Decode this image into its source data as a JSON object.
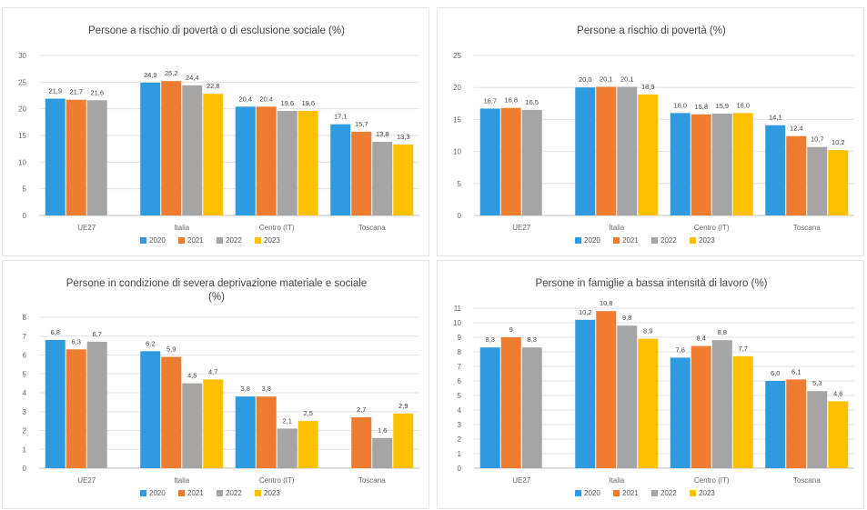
{
  "colors": {
    "2020": "#2e9be0",
    "2021": "#ee7d31",
    "2022": "#a5a5a5",
    "2023": "#ffc000",
    "grid": "#e3e3e3",
    "axis": "#bfbfbf"
  },
  "chart_data": [
    {
      "type": "bar",
      "title": [
        "Persone a rischio di povertà o di esclusione sociale (%)"
      ],
      "categories": [
        "UE27",
        "Italia",
        "Centro (IT)",
        "Toscana"
      ],
      "yticks": [
        "0",
        "5",
        "10",
        "15",
        "20",
        "25",
        "30"
      ],
      "ylim": [
        0,
        30
      ],
      "legend_position": "bottom",
      "series": [
        {
          "name": "2020",
          "values": [
            21.9,
            24.9,
            20.4,
            17.1
          ],
          "labels": [
            "21,9",
            "24,9",
            "20,4",
            "17,1"
          ]
        },
        {
          "name": "2021",
          "values": [
            21.7,
            25.2,
            20.4,
            15.7
          ],
          "labels": [
            "21,7",
            "25,2",
            "20,4",
            "15,7"
          ]
        },
        {
          "name": "2022",
          "values": [
            21.6,
            24.4,
            19.6,
            13.8
          ],
          "labels": [
            "21,6",
            "24,4",
            "19,6",
            "13,8"
          ]
        },
        {
          "name": "2023",
          "values": [
            null,
            22.8,
            19.6,
            13.3
          ],
          "labels": [
            "",
            "22,8",
            "19,6",
            "13,3"
          ]
        }
      ]
    },
    {
      "type": "bar",
      "title": [
        "Persone a rischio di povertà (%)"
      ],
      "categories": [
        "UE27",
        "Italia",
        "Centro (IT)",
        "Toscana"
      ],
      "yticks": [
        "0",
        "5",
        "10",
        "15",
        "20",
        "25"
      ],
      "ylim": [
        0,
        25
      ],
      "legend_position": "bottom",
      "series": [
        {
          "name": "2020",
          "values": [
            16.7,
            20.0,
            16.0,
            14.1
          ],
          "labels": [
            "16,7",
            "20,0",
            "16,0",
            "14,1"
          ]
        },
        {
          "name": "2021",
          "values": [
            16.8,
            20.1,
            15.8,
            12.4
          ],
          "labels": [
            "16,8",
            "20,1",
            "15,8",
            "12,4"
          ]
        },
        {
          "name": "2022",
          "values": [
            16.5,
            20.1,
            15.9,
            10.7
          ],
          "labels": [
            "16,5",
            "20,1",
            "15,9",
            "10,7"
          ]
        },
        {
          "name": "2023",
          "values": [
            null,
            18.9,
            16.0,
            10.2
          ],
          "labels": [
            "",
            "18,9",
            "16,0",
            "10,2"
          ]
        }
      ]
    },
    {
      "type": "bar",
      "title": [
        "Persone in condizione di severa deprivazione materiale e sociale",
        "(%)"
      ],
      "categories": [
        "UE27",
        "Italia",
        "Centro (IT)",
        "Toscana"
      ],
      "yticks": [
        "0",
        "1",
        "2",
        "3",
        "4",
        "5",
        "6",
        "7",
        "8"
      ],
      "ylim": [
        0,
        8
      ],
      "legend_position": "bottom",
      "series": [
        {
          "name": "2020",
          "values": [
            6.8,
            6.2,
            3.8,
            null
          ],
          "labels": [
            "6,8",
            "6,2",
            "3,8",
            ""
          ]
        },
        {
          "name": "2021",
          "values": [
            6.3,
            5.9,
            3.8,
            2.7
          ],
          "labels": [
            "6,3",
            "5,9",
            "3,8",
            "2,7"
          ]
        },
        {
          "name": "2022",
          "values": [
            6.7,
            4.5,
            2.1,
            1.6
          ],
          "labels": [
            "6,7",
            "4,5",
            "2,1",
            "1,6"
          ]
        },
        {
          "name": "2023",
          "values": [
            null,
            4.7,
            2.5,
            2.9
          ],
          "labels": [
            "",
            "4,7",
            "2,5",
            "2,9"
          ]
        }
      ]
    },
    {
      "type": "bar",
      "title": [
        "Persone in famiglie a bassa intensità di lavoro (%)"
      ],
      "categories": [
        "UE27",
        "Italia",
        "Centro (IT)",
        "Toscana"
      ],
      "yticks": [
        "0",
        "1",
        "2",
        "3",
        "4",
        "5",
        "6",
        "7",
        "8",
        "9",
        "10",
        "11"
      ],
      "ylim": [
        0,
        11
      ],
      "legend_position": "bottom",
      "series": [
        {
          "name": "2020",
          "values": [
            8.3,
            10.2,
            7.6,
            6.0
          ],
          "labels": [
            "8,3",
            "10,2",
            "7,6",
            "6,0"
          ]
        },
        {
          "name": "2021",
          "values": [
            9.0,
            10.8,
            8.4,
            6.1
          ],
          "labels": [
            "9",
            "10,8",
            "8,4",
            "6,1"
          ]
        },
        {
          "name": "2022",
          "values": [
            8.3,
            9.8,
            8.8,
            5.3
          ],
          "labels": [
            "8,3",
            "9,8",
            "8,8",
            "5,3"
          ]
        },
        {
          "name": "2023",
          "values": [
            null,
            8.9,
            7.7,
            4.6
          ],
          "labels": [
            "",
            "8,9",
            "7,7",
            "4,6"
          ]
        }
      ]
    }
  ]
}
